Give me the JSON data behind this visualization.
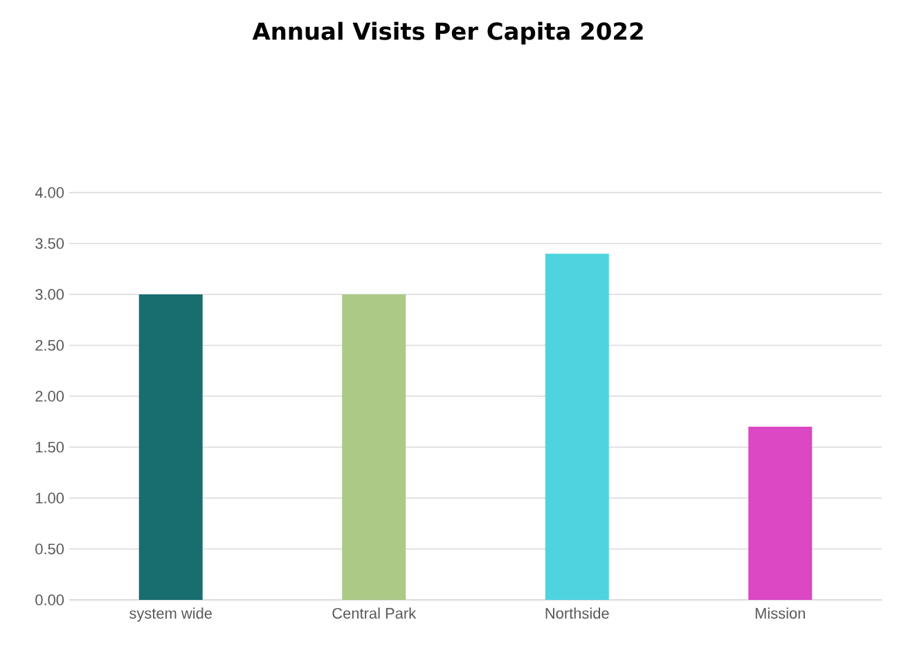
{
  "chart_data": {
    "type": "bar",
    "title": "Annual Visits Per Capita 2022",
    "categories": [
      "system wide",
      "Central Park",
      "Northside",
      "Mission"
    ],
    "values": [
      3.0,
      3.0,
      3.4,
      1.7
    ],
    "colors": [
      "#186e6f",
      "#adc986",
      "#4fd3de",
      "#dc47c3"
    ],
    "ylim": [
      0,
      4
    ],
    "yticks": [
      {
        "value": 0,
        "label": "0.00"
      },
      {
        "value": 0.5,
        "label": "0.50"
      },
      {
        "value": 1,
        "label": "1.00"
      },
      {
        "value": 1.5,
        "label": "1.50"
      },
      {
        "value": 2,
        "label": "2.00"
      },
      {
        "value": 2.5,
        "label": "2.50"
      },
      {
        "value": 3,
        "label": "3.00"
      },
      {
        "value": 3.5,
        "label": "3.50"
      },
      {
        "value": 4,
        "label": "4.00"
      }
    ],
    "grid": "y"
  }
}
